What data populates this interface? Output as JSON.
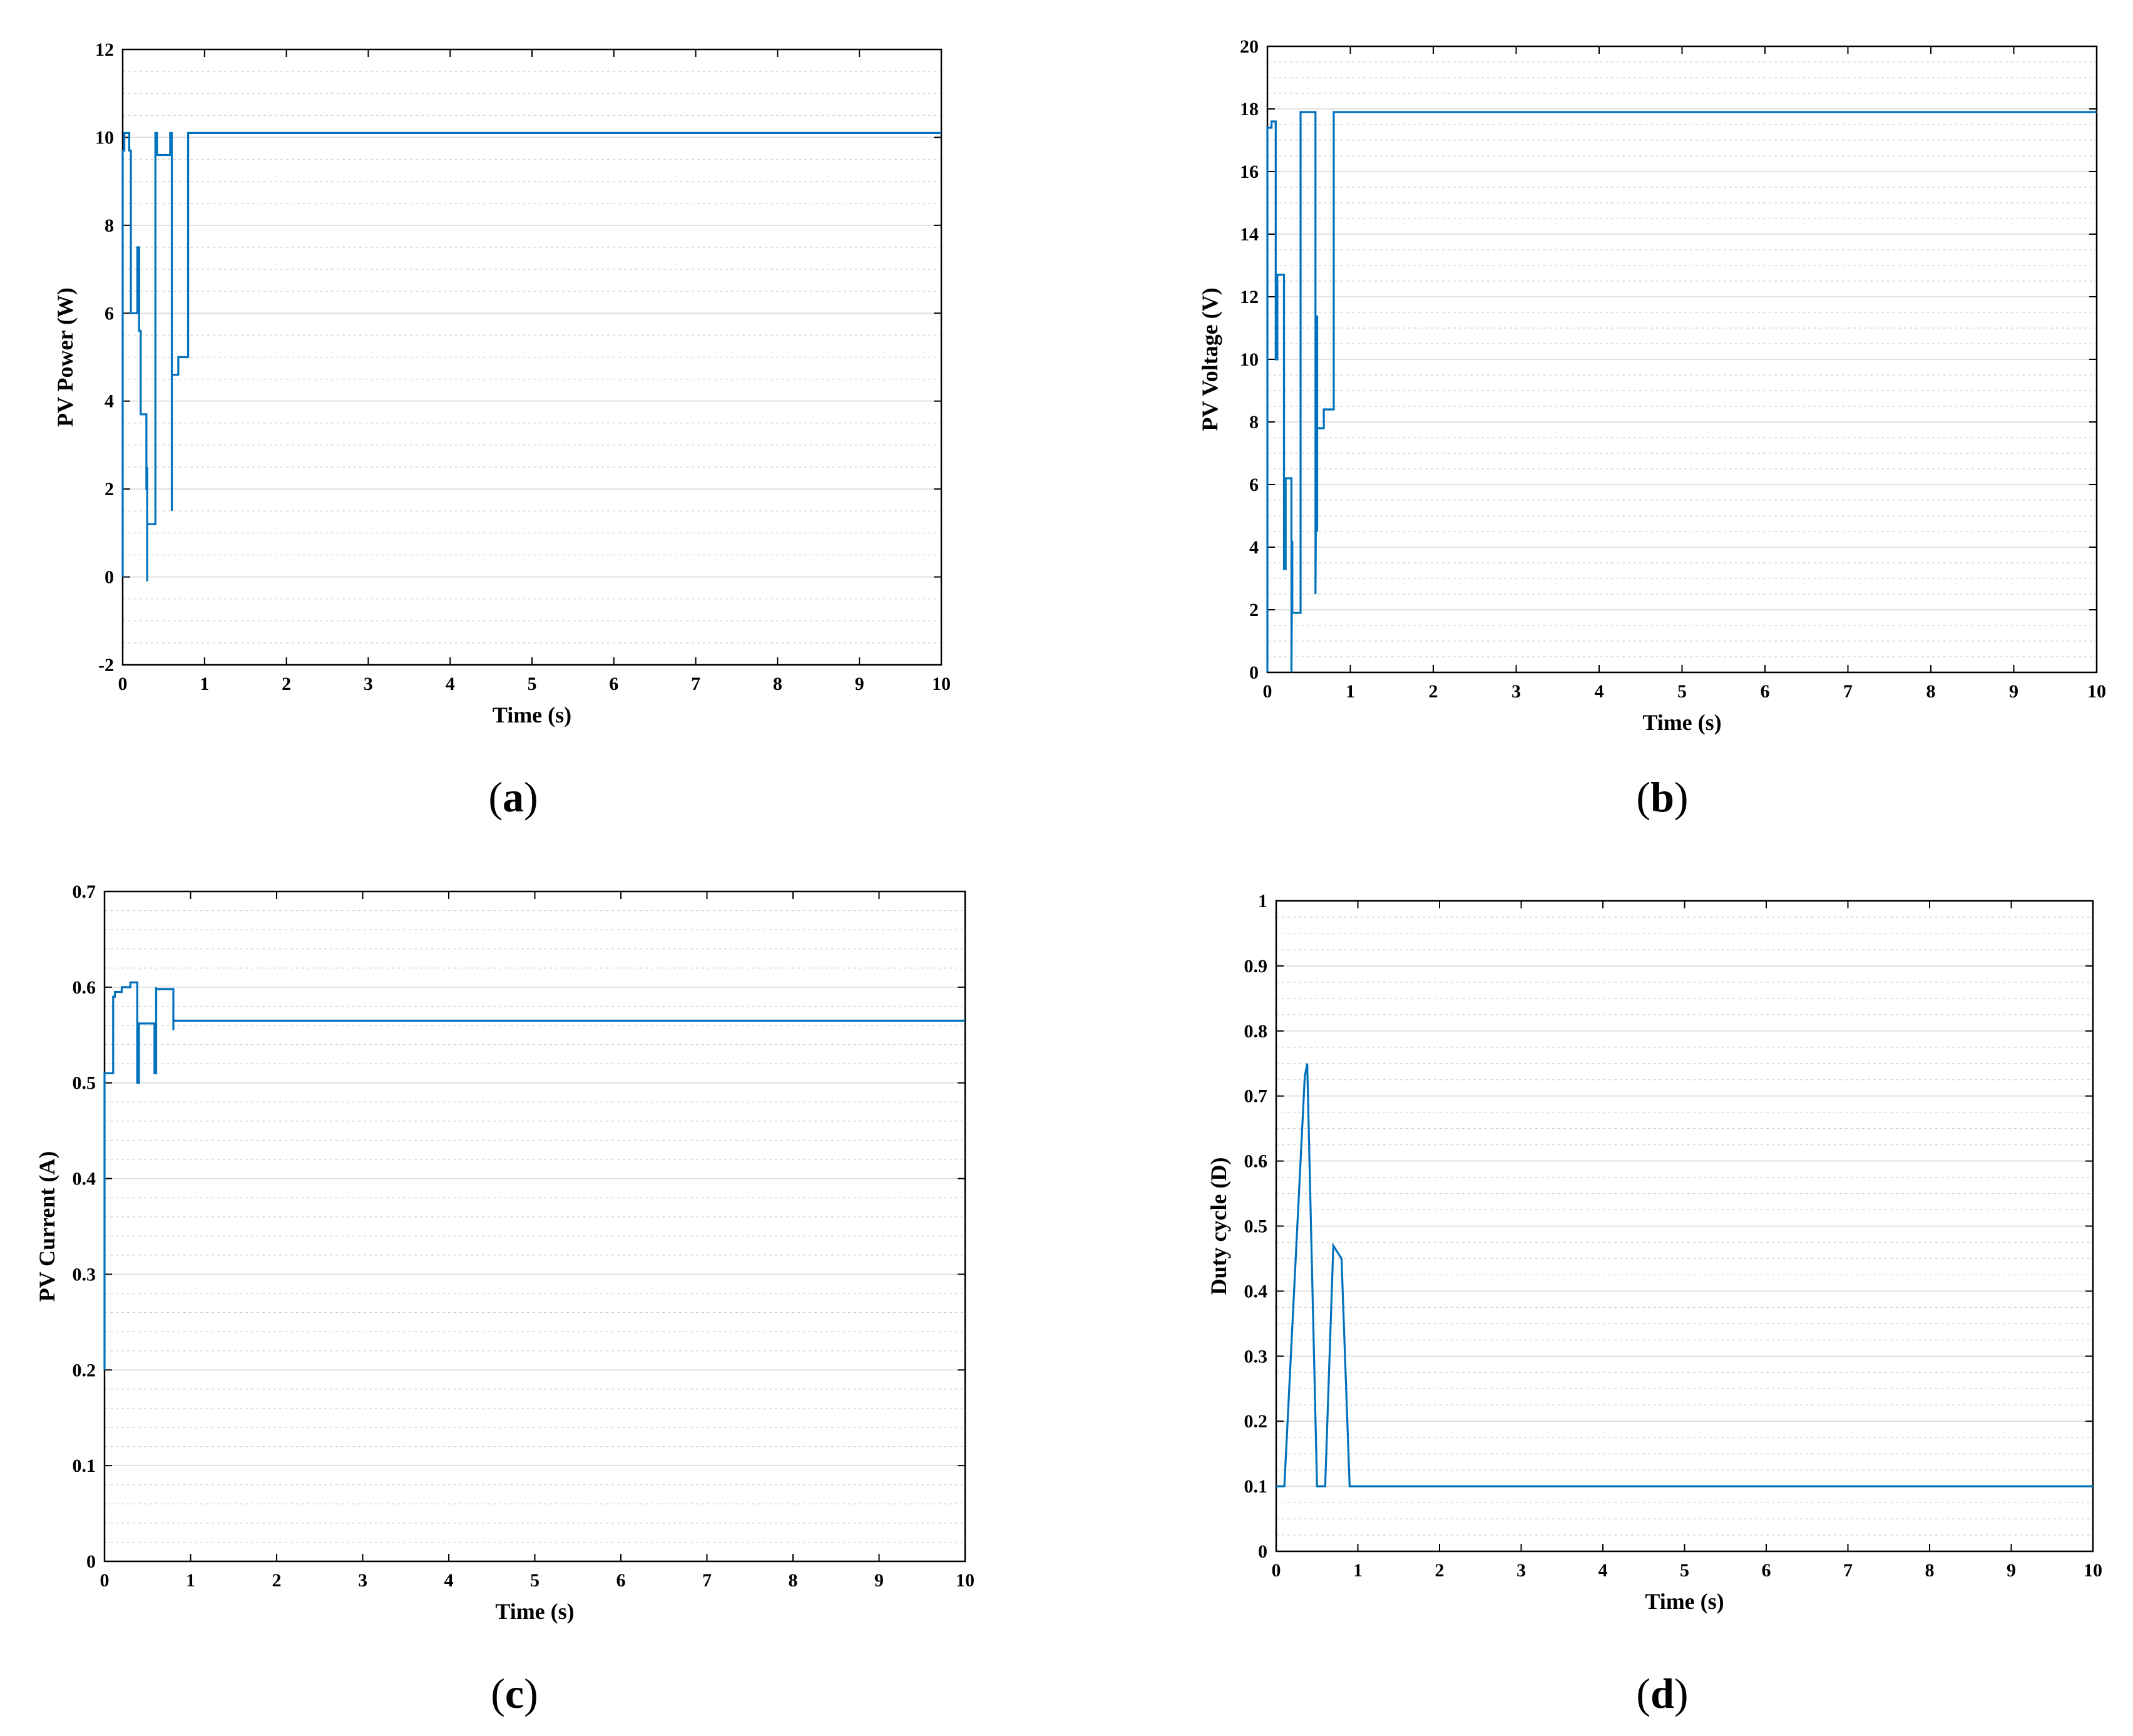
{
  "colors": {
    "series": "#0072bd",
    "grid": "#d9d9d9",
    "axis": "#000000"
  },
  "chart_data": [
    {
      "type": "line",
      "panel": "a",
      "caption": {
        "open": "(",
        "letter": "a",
        "close": ")"
      },
      "xlabel": "Time (s)",
      "ylabel": "PV Power (W)",
      "xlim": [
        0,
        10
      ],
      "ylim": [
        -2,
        12
      ],
      "xticks": [
        0,
        1,
        2,
        3,
        4,
        5,
        6,
        7,
        8,
        9,
        10
      ],
      "yticks": [
        -2,
        0,
        2,
        4,
        6,
        8,
        10,
        12
      ],
      "minor_grid_step": 0.5,
      "grid": true,
      "series": [
        {
          "x": [
            0,
            0,
            0.02,
            0.02,
            0.08,
            0.08,
            0.1,
            0.1,
            0.18,
            0.18,
            0.2,
            0.2,
            0.22,
            0.22,
            0.29,
            0.29,
            0.3,
            0.3,
            0.3,
            0.3,
            0.4,
            0.4,
            0.42,
            0.42,
            0.58,
            0.58,
            0.6,
            0.6,
            0.6,
            0.6,
            0.68,
            0.68,
            0.8,
            0.8,
            10
          ],
          "y": [
            0,
            9.7,
            9.7,
            10.1,
            10.1,
            9.7,
            9.7,
            6,
            6,
            7.5,
            7.5,
            5.6,
            5.6,
            3.7,
            3.7,
            2,
            2,
            -0.1,
            2.5,
            1.2,
            1.2,
            10.1,
            10.1,
            9.6,
            9.6,
            10.1,
            10.1,
            1.5,
            6.8,
            4.6,
            4.6,
            5,
            5,
            10.1,
            10.1
          ]
        }
      ]
    },
    {
      "type": "line",
      "panel": "b",
      "caption": {
        "open": "(",
        "letter": "b",
        "close": ")"
      },
      "xlabel": "Time (s)",
      "ylabel": "PV Voltage (V)",
      "xlim": [
        0,
        10
      ],
      "ylim": [
        0,
        20
      ],
      "xticks": [
        0,
        1,
        2,
        3,
        4,
        5,
        6,
        7,
        8,
        9,
        10
      ],
      "yticks": [
        0,
        2,
        4,
        6,
        8,
        10,
        12,
        14,
        16,
        18,
        20
      ],
      "minor_grid_step": 0.5,
      "grid": true,
      "series": [
        {
          "x": [
            0,
            0,
            0.05,
            0.05,
            0.1,
            0.1,
            0.12,
            0.12,
            0.2,
            0.2,
            0.22,
            0.22,
            0.29,
            0.29,
            0.3,
            0.3,
            0.3,
            0.3,
            0.4,
            0.4,
            0.42,
            0.42,
            0.58,
            0.58,
            0.6,
            0.6,
            0.6,
            0.6,
            0.68,
            0.68,
            0.8,
            0.8,
            10
          ],
          "y": [
            0,
            17.4,
            17.4,
            17.6,
            17.6,
            10,
            10,
            12.7,
            12.7,
            3.3,
            3.3,
            6.2,
            6.2,
            0,
            4.2,
            1.9,
            1.9,
            1.9,
            1.9,
            17.9,
            17.9,
            17.9,
            17.9,
            2.5,
            11.4,
            4.5,
            4.5,
            7.8,
            7.8,
            8.4,
            8.4,
            17.9,
            17.9
          ]
        }
      ]
    },
    {
      "type": "line",
      "panel": "c",
      "caption": {
        "open": "(",
        "letter": "c",
        "close": ")"
      },
      "xlabel": "Time (s)",
      "ylabel": "PV Current (A)",
      "xlim": [
        0,
        10
      ],
      "ylim": [
        0,
        0.7
      ],
      "xticks": [
        0,
        1,
        2,
        3,
        4,
        5,
        6,
        7,
        8,
        9,
        10
      ],
      "yticks": [
        0,
        0.1,
        0.2,
        0.3,
        0.4,
        0.5,
        0.6,
        0.7
      ],
      "minor_grid_step": 0.02,
      "grid": true,
      "series": [
        {
          "x": [
            0,
            0,
            0.1,
            0.1,
            0.12,
            0.12,
            0.2,
            0.2,
            0.3,
            0.3,
            0.38,
            0.38,
            0.4,
            0.4,
            0.58,
            0.58,
            0.6,
            0.6,
            0.6,
            0.8,
            0.8,
            0.8,
            10
          ],
          "y": [
            0.2,
            0.51,
            0.51,
            0.59,
            0.59,
            0.595,
            0.595,
            0.6,
            0.6,
            0.605,
            0.605,
            0.5,
            0.5,
            0.562,
            0.562,
            0.51,
            0.51,
            0.6,
            0.598,
            0.598,
            0.555,
            0.565,
            0.565
          ]
        }
      ]
    },
    {
      "type": "line",
      "panel": "d",
      "caption": {
        "open": "(",
        "letter": "d",
        "close": ")"
      },
      "xlabel": "Time (s)",
      "ylabel": "Duty cycle (D)",
      "xlim": [
        0,
        10
      ],
      "ylim": [
        0,
        1
      ],
      "xticks": [
        0,
        1,
        2,
        3,
        4,
        5,
        6,
        7,
        8,
        9,
        10
      ],
      "yticks": [
        0,
        0.1,
        0.2,
        0.3,
        0.4,
        0.5,
        0.6,
        0.7,
        0.8,
        0.9,
        1
      ],
      "minor_grid_step": 0.025,
      "grid": true,
      "series": [
        {
          "x": [
            0,
            0.1,
            0.35,
            0.38,
            0.5,
            0.6,
            0.7,
            0.75,
            0.8,
            0.9,
            10
          ],
          "y": [
            0.1,
            0.1,
            0.73,
            0.75,
            0.1,
            0.1,
            0.47,
            0.46,
            0.45,
            0.1,
            0.1
          ]
        }
      ]
    }
  ]
}
